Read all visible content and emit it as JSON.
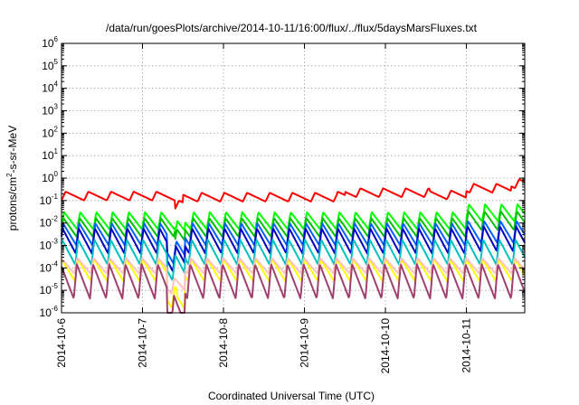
{
  "chart_data": {
    "type": "line",
    "title": "/data/run/goesPlots/archive/2014-10-11/16:00/flux/../flux/5daysMarsFluxes.txt",
    "xlabel": "Coordinated Universal Time (UTC)",
    "ylabel_prefix": "protons/cm",
    "ylabel_sup": "2",
    "ylabel_suffix": "-s-sr-MeV",
    "x_ticks": [
      "2014-10-6",
      "2014-10-7",
      "2014-10-8",
      "2014-10-9",
      "2014-10-10",
      "2014-10-11"
    ],
    "y_scale": "log",
    "ylim": [
      -6,
      6
    ],
    "y_ticks": [
      {
        "base": "10",
        "exp": "-6"
      },
      {
        "base": "10",
        "exp": "-5"
      },
      {
        "base": "10",
        "exp": "-4"
      },
      {
        "base": "10",
        "exp": "-3"
      },
      {
        "base": "10",
        "exp": "-2"
      },
      {
        "base": "10",
        "exp": "-1"
      },
      {
        "base": "10",
        "exp": "0"
      },
      {
        "base": "10",
        "exp": "1"
      },
      {
        "base": "10",
        "exp": "2"
      },
      {
        "base": "10",
        "exp": "3"
      },
      {
        "base": "10",
        "exp": "4"
      },
      {
        "base": "10",
        "exp": "5"
      },
      {
        "base": "10",
        "exp": "6"
      }
    ],
    "xlim_days": [
      0,
      5.72
    ],
    "grid": true,
    "legend": "none",
    "series": [
      {
        "color": "#ff0000",
        "base": -0.8,
        "amp": 0.28,
        "period_days": 0.28,
        "steps": [
          [
            1.4,
            -1.2
          ],
          [
            1.5,
            -0.85
          ],
          [
            3.4,
            -0.8
          ],
          [
            3.5,
            -0.65
          ],
          [
            4.55,
            -0.75
          ],
          [
            5.0,
            -0.45
          ],
          [
            5.55,
            -0.25
          ]
        ]
      },
      {
        "color": "#00ff00",
        "base": -1.9,
        "amp": 0.55,
        "period_days": 0.2,
        "steps": [
          [
            1.4,
            -2.3
          ],
          [
            1.52,
            -1.9
          ],
          [
            5.0,
            -1.55
          ]
        ]
      },
      {
        "color": "#00c000",
        "base": -2.2,
        "amp": 0.6,
        "period_days": 0.2,
        "steps": [
          [
            1.4,
            -2.7
          ],
          [
            1.52,
            -2.2
          ],
          [
            5.0,
            -1.9
          ]
        ]
      },
      {
        "color": "#0060ff",
        "base": -2.5,
        "amp": 0.7,
        "period_days": 0.2,
        "steps": [
          [
            1.3,
            -3.3
          ],
          [
            1.52,
            -2.5
          ],
          [
            5.0,
            -2.4
          ]
        ]
      },
      {
        "color": "#0000c0",
        "base": -2.8,
        "amp": 0.8,
        "period_days": 0.2,
        "steps": [
          [
            1.3,
            -3.6
          ],
          [
            1.52,
            -2.8
          ],
          [
            5.0,
            -2.7
          ]
        ]
      },
      {
        "color": "#00c0c0",
        "base": -3.3,
        "amp": 0.8,
        "period_days": 0.2,
        "steps": [
          [
            1.3,
            -4.0
          ],
          [
            1.52,
            -3.3
          ]
        ]
      },
      {
        "color": "#ffff00",
        "base": -4.1,
        "amp": 0.7,
        "period_days": 0.2,
        "steps": [
          [
            1.3,
            -5.3
          ],
          [
            1.43,
            -5.6
          ],
          [
            1.52,
            -4.1
          ]
        ]
      },
      {
        "color": "#ffc0c0",
        "base": -3.9,
        "amp": 0.5,
        "period_days": 0.2,
        "steps": [
          [
            1.3,
            -4.8
          ],
          [
            1.52,
            -3.9
          ]
        ]
      },
      {
        "color": "#a04070",
        "base": -4.6,
        "amp": 1.1,
        "period_days": 0.2,
        "steps": [
          [
            1.3,
            -6.0
          ],
          [
            1.45,
            -6.0
          ],
          [
            1.52,
            -4.6
          ]
        ]
      }
    ]
  }
}
